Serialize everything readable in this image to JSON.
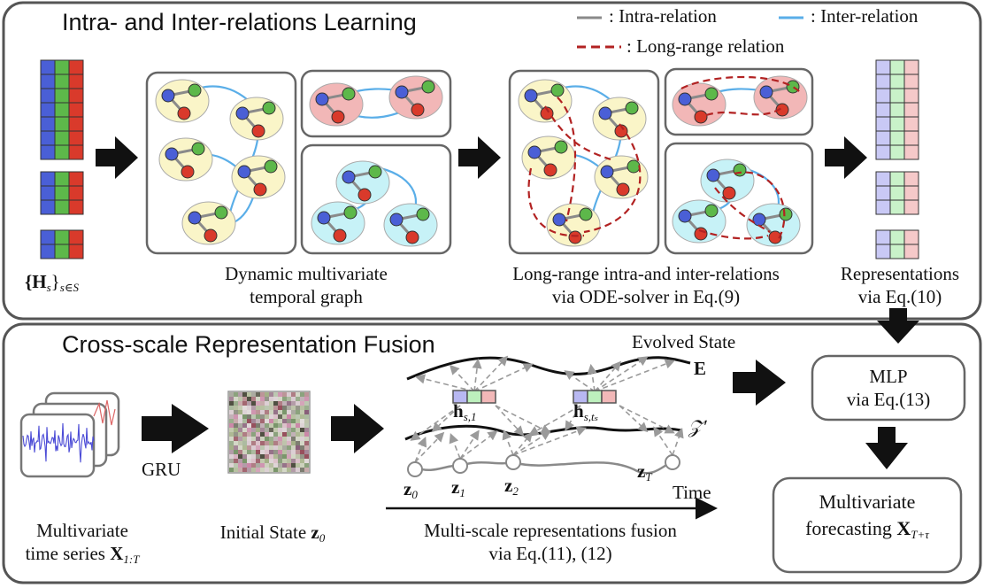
{
  "top_panel": {
    "title": "Intra- and Inter-relations Learning",
    "legend": {
      "intra": ": Intra-relation",
      "inter": ": Inter-relation",
      "long_range": ": Long-range relation"
    },
    "hs_base": "{H",
    "hs_sub_s": "s",
    "hs_brace": "}",
    "hs_sub_set": "s∈S",
    "graph_caption_1": "Dynamic multivariate",
    "graph_caption_2": "temporal graph",
    "ode_caption_1": "Long-range intra-and inter-relations",
    "ode_caption_2": "via ODE-solver in Eq.(9)",
    "repr_caption_1": "Representations",
    "repr_caption_2": "via Eq.(10)"
  },
  "bottom_panel": {
    "title": "Cross-scale Representation Fusion",
    "gru_label": "GRU",
    "ts_caption_1": "Multivariate",
    "ts_caption_2": "time series",
    "ts_symbol": "X",
    "ts_sub": "1:T",
    "init_caption": "Initial State",
    "init_symbol": "z",
    "init_sub": "0",
    "evolved_state": "Evolved State",
    "e_symbol": "E",
    "zprime_symbol": "𝒵′",
    "h1_symbol": "h",
    "h1_sub": "s,1",
    "h2_symbol": "h",
    "h2_sub": "s,tₛ",
    "z_labels": [
      "z",
      "z",
      "z",
      "z"
    ],
    "z_subs": [
      "0",
      "1",
      "2",
      "T"
    ],
    "time_label": "Time",
    "fusion_caption_1": "Multi-scale representations fusion",
    "fusion_caption_2": "via Eq.(11), (12)",
    "mlp_line1": "MLP",
    "mlp_line2": "via Eq.(13)",
    "forecast_line1": "Multivariate",
    "forecast_line2": "forecasting",
    "forecast_symbol": "X",
    "forecast_sub": "T+τ"
  },
  "colors": {
    "intra": "#8a8a8a",
    "inter": "#5aaee8",
    "long_range": "#b22222",
    "node_blue": "#4a5fd6",
    "node_green": "#5db84a",
    "node_red": "#d93a2b",
    "cluster_yellow": "#faf5c8",
    "cluster_red": "#f2b7b7",
    "cluster_cyan": "#c7f2f7",
    "panel_border": "#555555"
  }
}
